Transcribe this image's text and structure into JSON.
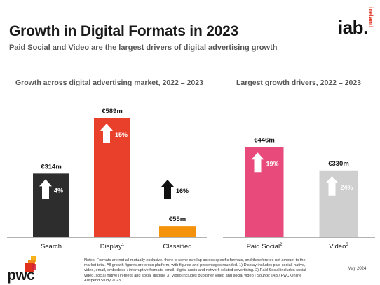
{
  "title": "Growth in Digital Formats in 2023",
  "subtitle": "Paid Social and Video are the largest drivers of digital advertising growth",
  "logo": {
    "main": "iab.",
    "side": "ireland"
  },
  "pwc_logo": "pwc",
  "date": "May 2024",
  "notes": "Notes: Formats are not all mutually exclusive, there is some overlap across specific formats, and therefore do not amount to the market total. All growth figures are cross platform, with figures and percentages rounded. 1) Display includes paid social, native, video, email, embedded / interruptive formats, email, digital audio and network-related advertising. 2) Paid Social includes social video, social native (in-feed) and social display. 3) Video includes publisher video and social video | Source: IAB / PwC Online Adspend Study 2023",
  "chart_data": [
    {
      "type": "bar",
      "title": "Growth across digital advertising market, 2022 – 2023",
      "categories": [
        "Search",
        "Display",
        "Classified"
      ],
      "category_superscripts": [
        "",
        "1",
        ""
      ],
      "values": [
        314,
        589,
        55
      ],
      "value_labels": [
        "€314m",
        "€589m",
        "€55m"
      ],
      "growth_labels": [
        "4%",
        "15%",
        "16%"
      ],
      "growth_direction": [
        "up",
        "up",
        "up"
      ],
      "colors": [
        "#2d2d2d",
        "#e8402a",
        "#f5920b"
      ],
      "unit": "€m"
    },
    {
      "type": "bar",
      "title": "Largest growth drivers, 2022 – 2023",
      "categories": [
        "Paid Social",
        "Video"
      ],
      "category_superscripts": [
        "2",
        "3"
      ],
      "values": [
        446,
        330
      ],
      "value_labels": [
        "€446m",
        "€330m"
      ],
      "growth_labels": [
        "19%",
        "24%"
      ],
      "growth_direction": [
        "up",
        "up"
      ],
      "colors": [
        "#e84a7b",
        "#cfcfcf"
      ],
      "unit": "€m"
    }
  ]
}
